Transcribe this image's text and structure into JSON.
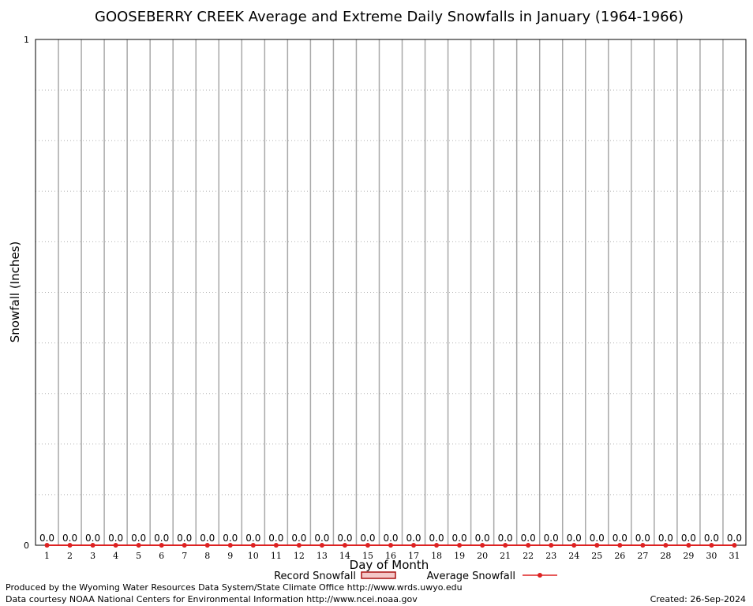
{
  "chart_data": {
    "type": "bar",
    "title": "GOOSEBERRY CREEK Average and Extreme Daily Snowfalls in January (1964-1966)",
    "xlabel": "Day of Month",
    "ylabel": "Snowfall (Inches)",
    "ylim": [
      0,
      1
    ],
    "y_ticks": [
      "0",
      "1"
    ],
    "grid": true,
    "categories": [
      "1",
      "2",
      "3",
      "4",
      "5",
      "6",
      "7",
      "8",
      "9",
      "10",
      "11",
      "12",
      "13",
      "14",
      "15",
      "16",
      "17",
      "18",
      "19",
      "20",
      "21",
      "22",
      "23",
      "24",
      "25",
      "26",
      "27",
      "28",
      "29",
      "30",
      "31"
    ],
    "series": [
      {
        "name": "Record Snowfall",
        "type": "bar",
        "color": "#cc2222",
        "values": [
          0,
          0,
          0,
          0,
          0,
          0,
          0,
          0,
          0,
          0,
          0,
          0,
          0,
          0,
          0,
          0,
          0,
          0,
          0,
          0,
          0,
          0,
          0,
          0,
          0,
          0,
          0,
          0,
          0,
          0,
          0
        ]
      },
      {
        "name": "Average Snowfall",
        "type": "line",
        "color": "#dd2222",
        "values": [
          0,
          0,
          0,
          0,
          0,
          0,
          0,
          0,
          0,
          0,
          0,
          0,
          0,
          0,
          0,
          0,
          0,
          0,
          0,
          0,
          0,
          0,
          0,
          0,
          0,
          0,
          0,
          0,
          0,
          0,
          0
        ]
      }
    ],
    "data_labels": [
      "0.0",
      "0.0",
      "0.0",
      "0.0",
      "0.0",
      "0.0",
      "0.0",
      "0.0",
      "0.0",
      "0.0",
      "0.0",
      "0.0",
      "0.0",
      "0.0",
      "0.0",
      "0.0",
      "0.0",
      "0.0",
      "0.0",
      "0.0",
      "0.0",
      "0.0",
      "0.0",
      "0.0",
      "0.0",
      "0.0",
      "0.0",
      "0.0",
      "0.0",
      "0.0",
      "0.0"
    ],
    "legend_placement": "bottom"
  },
  "footer": {
    "produced_by": "Produced by the Wyoming Water Resources Data System/State Climate Office http://www.wrds.uwyo.edu",
    "data_courtesy": "Data courtesy NOAA National Centers for Environmental Information http://www.ncei.noaa.gov",
    "created": "Created:  26-Sep-2024"
  }
}
